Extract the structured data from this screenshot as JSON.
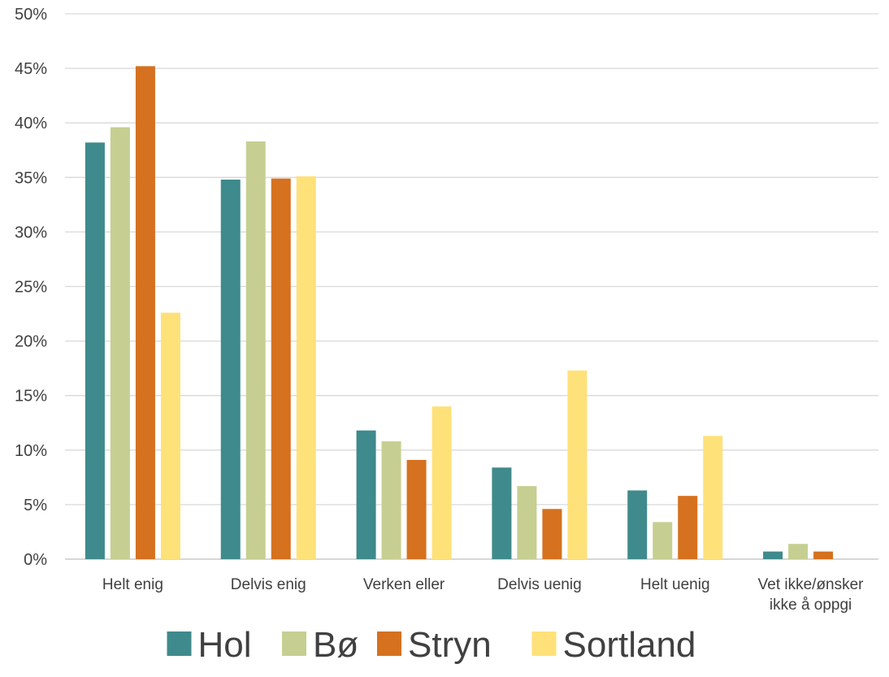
{
  "chart_data": {
    "type": "bar",
    "categories": [
      [
        "Helt enig"
      ],
      [
        "Delvis enig"
      ],
      [
        "Verken eller"
      ],
      [
        "Delvis uenig"
      ],
      [
        "Helt uenig"
      ],
      [
        "Vet ikke/ønsker",
        "ikke å oppgi"
      ]
    ],
    "series": [
      {
        "name": "Hol",
        "color": "#3f8a8c",
        "values": [
          38.2,
          34.8,
          11.8,
          8.4,
          6.3,
          0.7
        ]
      },
      {
        "name": "Bø",
        "color": "#c6cf91",
        "values": [
          39.6,
          38.3,
          10.8,
          6.7,
          3.4,
          1.4
        ]
      },
      {
        "name": "Stryn",
        "color": "#d5711f",
        "values": [
          45.2,
          34.9,
          9.1,
          4.6,
          5.8,
          0.7
        ]
      },
      {
        "name": "Sortland",
        "color": "#ffe17a",
        "values": [
          22.6,
          35.1,
          14.0,
          17.3,
          11.3,
          0
        ]
      }
    ],
    "ylim": [
      0,
      50
    ],
    "yticks": [
      0,
      5,
      10,
      15,
      20,
      25,
      30,
      35,
      40,
      45,
      50
    ],
    "ytick_suffix": "%",
    "title": "",
    "xlabel": "",
    "ylabel": "",
    "grid": true,
    "legend_position": "bottom"
  }
}
